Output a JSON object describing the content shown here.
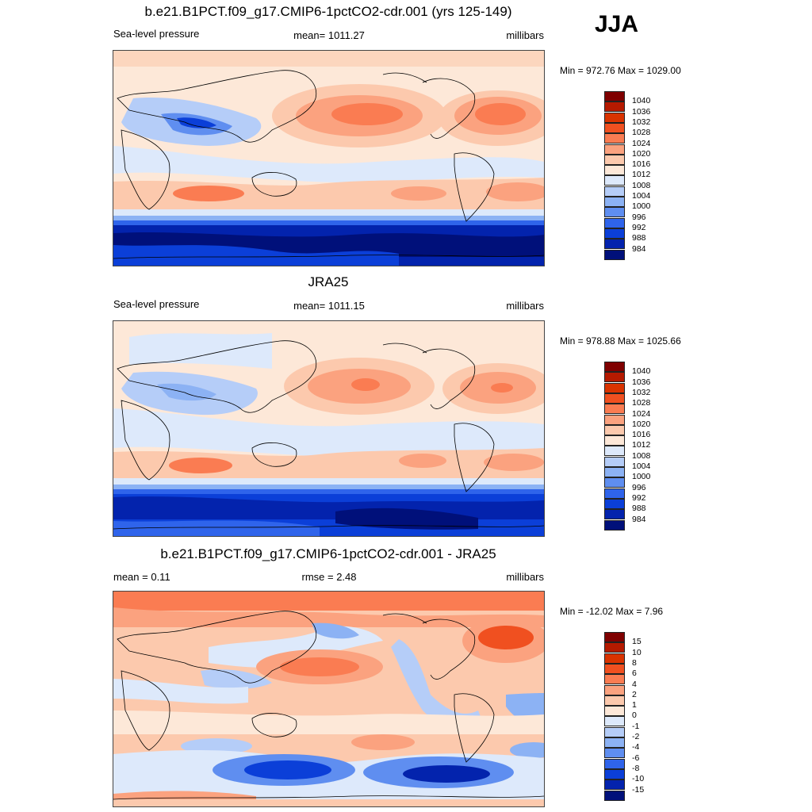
{
  "season": "JJA",
  "contour_colors": [
    "#7f0000",
    "#b51a00",
    "#d93300",
    "#f05020",
    "#fa7c52",
    "#fba27f",
    "#fcc9ad",
    "#fde8d8",
    "#dde9fb",
    "#b5cdf8",
    "#8cb2f4",
    "#5f8ef0",
    "#2f64eb",
    "#0b3fd8",
    "#0323ad",
    "#00107a"
  ],
  "panels": [
    {
      "title": "b.e21.B1PCT.f09_g17.CMIP6-1pctCO2-cdr.001 (yrs 125-149)",
      "sub_left": "Sea-level pressure",
      "sub_center": "mean= 1011.27",
      "sub_right": "millibars",
      "minmax": "Min = 972.76 Max = 1029.00",
      "colorbar_labels": [
        "1040",
        "1036",
        "1032",
        "1028",
        "1024",
        "1020",
        "1016",
        "1012",
        "1008",
        "1004",
        "1000",
        "996",
        "992",
        "988",
        "984"
      ]
    },
    {
      "title": "JRA25",
      "sub_left": "Sea-level pressure",
      "sub_center": "mean= 1011.15",
      "sub_right": "millibars",
      "minmax": "Min = 978.88 Max = 1025.66",
      "colorbar_labels": [
        "1040",
        "1036",
        "1032",
        "1028",
        "1024",
        "1020",
        "1016",
        "1012",
        "1008",
        "1004",
        "1000",
        "996",
        "992",
        "988",
        "984"
      ]
    },
    {
      "title": "b.e21.B1PCT.f09_g17.CMIP6-1pctCO2-cdr.001 - JRA25",
      "sub_left": "mean =   0.11",
      "sub_center": "rmse =   2.48",
      "sub_right": "millibars",
      "minmax": "Min = -12.02 Max =   7.96",
      "colorbar_labels": [
        "15",
        "10",
        "8",
        "6",
        "4",
        "2",
        "1",
        "0",
        "-1",
        "-2",
        "-4",
        "-6",
        "-8",
        "-10",
        "-15"
      ]
    }
  ]
}
